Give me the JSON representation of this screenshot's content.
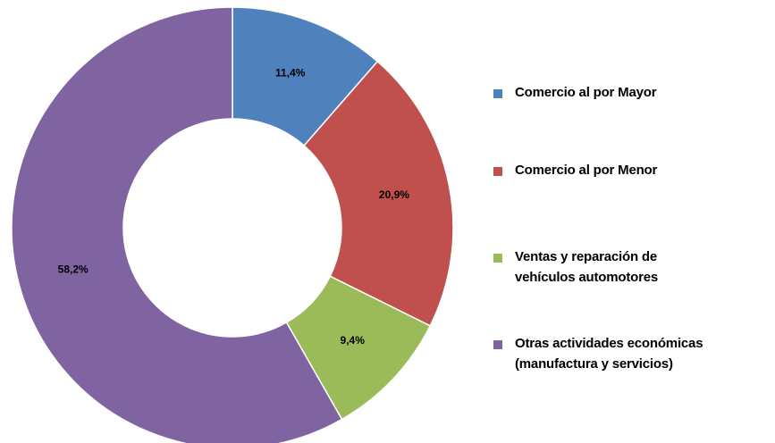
{
  "chart_data": {
    "type": "donut",
    "categories": [
      "Comercio al por Mayor",
      "Comercio al por Menor",
      "Ventas y reparación de\nvehículos automotores",
      "Otras actividades económicas\n(manufactura y servicios)"
    ],
    "values": [
      11.4,
      20.9,
      9.4,
      58.2
    ],
    "value_labels": [
      "11,4%",
      "20,9%",
      "9,4%",
      "58,2%"
    ],
    "colors": [
      "#4f81bd",
      "#c0504d",
      "#9bbb59",
      "#8064a2"
    ],
    "legend": "right"
  }
}
